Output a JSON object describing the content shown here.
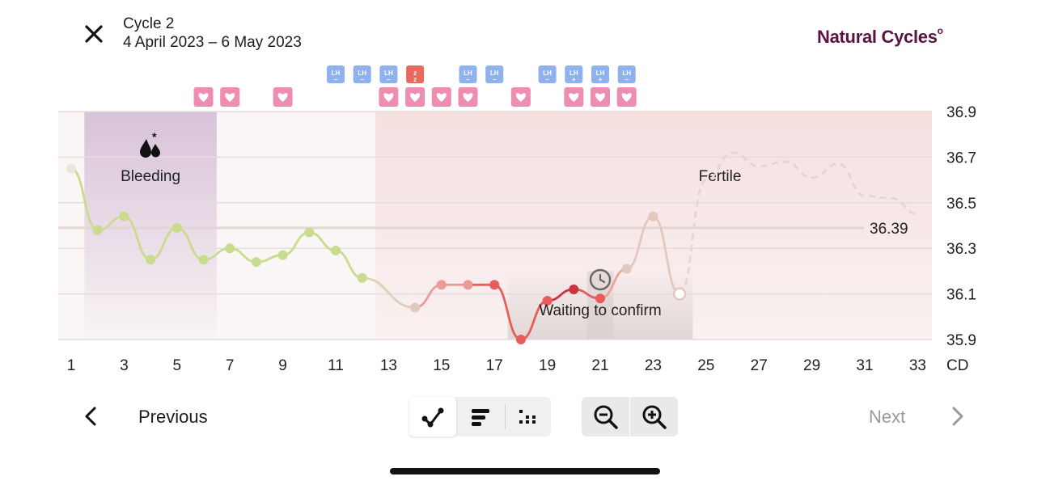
{
  "header": {
    "cycle_title": "Cycle 2",
    "cycle_dates": "4 April 2023 – 6 May 2023",
    "brand": "Natural Cycles"
  },
  "nav": {
    "previous_label": "Previous",
    "next_label": "Next"
  },
  "colors": {
    "brand": "#5a1347",
    "follicular_line": "#c9dc8e",
    "luteal_line": "#e2c8bd",
    "fertile_point": "#e85c5c",
    "confirm_point": "#c9353a",
    "lh_badge": "#8fb1ee",
    "lh_high_badge": "#e86a5d",
    "sex_badge": "#ef8db0",
    "bleeding_band": "#d8c2d8",
    "fertile_band": "#f6e0e0"
  },
  "chart_data": {
    "type": "line",
    "xlabel": "CD",
    "xticks": [
      1,
      3,
      5,
      7,
      9,
      11,
      13,
      15,
      17,
      19,
      21,
      23,
      25,
      27,
      29,
      31,
      33
    ],
    "yticks": [
      35.9,
      36.1,
      36.3,
      36.5,
      36.7,
      36.9
    ],
    "ylim": [
      35.9,
      36.9
    ],
    "xlim": [
      1,
      33
    ],
    "coverline": {
      "value": 36.39,
      "label": "36.39"
    },
    "annotations": {
      "bleeding": "Bleeding",
      "fertile": "Fertile",
      "waiting": "Waiting to confirm"
    },
    "bleeding_days": [
      2,
      6
    ],
    "fertile_days": [
      13,
      25
    ],
    "waiting_days": [
      18,
      24
    ],
    "series": [
      {
        "name": "temperature",
        "points": [
          {
            "day": 1,
            "temp": 36.65,
            "phase": "previous"
          },
          {
            "day": 2,
            "temp": 36.38,
            "phase": "follicular"
          },
          {
            "day": 3,
            "temp": 36.44,
            "phase": "follicular"
          },
          {
            "day": 4,
            "temp": 36.25,
            "phase": "follicular"
          },
          {
            "day": 5,
            "temp": 36.39,
            "phase": "follicular"
          },
          {
            "day": 6,
            "temp": 36.25,
            "phase": "follicular"
          },
          {
            "day": 7,
            "temp": 36.3,
            "phase": "follicular"
          },
          {
            "day": 8,
            "temp": 36.24,
            "phase": "follicular"
          },
          {
            "day": 9,
            "temp": 36.27,
            "phase": "follicular"
          },
          {
            "day": 10,
            "temp": 36.37,
            "phase": "follicular"
          },
          {
            "day": 11,
            "temp": 36.29,
            "phase": "follicular"
          },
          {
            "day": 12,
            "temp": 36.17,
            "phase": "follicular"
          },
          {
            "day": 14,
            "temp": 36.04,
            "phase": "luteal"
          },
          {
            "day": 15,
            "temp": 36.14,
            "phase": "fertile-light"
          },
          {
            "day": 16,
            "temp": 36.14,
            "phase": "fertile-light"
          },
          {
            "day": 17,
            "temp": 36.14,
            "phase": "fertile"
          },
          {
            "day": 18,
            "temp": 35.9,
            "phase": "fertile"
          },
          {
            "day": 19,
            "temp": 36.07,
            "phase": "fertile"
          },
          {
            "day": 20,
            "temp": 36.12,
            "phase": "confirm"
          },
          {
            "day": 21,
            "temp": 36.08,
            "phase": "fertile"
          },
          {
            "day": 22,
            "temp": 36.21,
            "phase": "luteal"
          },
          {
            "day": 23,
            "temp": 36.44,
            "phase": "luteal"
          },
          {
            "day": 24,
            "temp": 36.1,
            "phase": "today"
          }
        ]
      },
      {
        "name": "prediction",
        "points": [
          {
            "day": 24,
            "temp": 36.1
          },
          {
            "day": 25,
            "temp": 36.6
          },
          {
            "day": 26,
            "temp": 36.72
          },
          {
            "day": 27,
            "temp": 36.66
          },
          {
            "day": 28,
            "temp": 36.68
          },
          {
            "day": 29,
            "temp": 36.61
          },
          {
            "day": 30,
            "temp": 36.67
          },
          {
            "day": 31,
            "temp": 36.53
          },
          {
            "day": 32,
            "temp": 36.52
          },
          {
            "day": 33,
            "temp": 36.45
          }
        ]
      }
    ],
    "lh_tests": [
      {
        "day": 11,
        "result": "negative",
        "label": "LH"
      },
      {
        "day": 12,
        "result": "negative",
        "label": "LH"
      },
      {
        "day": 13,
        "result": "negative",
        "label": "LH"
      },
      {
        "day": 14,
        "result": "peak",
        "label": "z"
      },
      {
        "day": 16,
        "result": "negative",
        "label": "LH"
      },
      {
        "day": 17,
        "result": "negative",
        "label": "LH"
      },
      {
        "day": 19,
        "result": "negative",
        "label": "LH"
      },
      {
        "day": 20,
        "result": "positive",
        "label": "LH"
      },
      {
        "day": 21,
        "result": "positive",
        "label": "LH"
      },
      {
        "day": 22,
        "result": "negative",
        "label": "LH"
      }
    ],
    "sex_days": [
      6,
      7,
      9,
      13,
      14,
      15,
      16,
      18,
      20,
      21,
      22
    ]
  }
}
